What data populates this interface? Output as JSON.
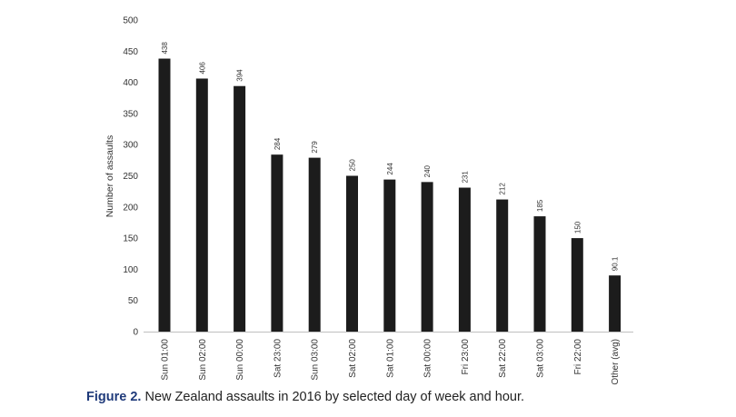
{
  "caption": {
    "figure_label": "Figure 2.",
    "text": "New Zealand assaults in 2016 by selected day of week and hour."
  },
  "colors": {
    "bar": "#1c1c1c",
    "axis": "#bfbfbf",
    "caption_label": "#1f3a7a"
  },
  "chart_data": {
    "type": "bar",
    "title": "",
    "xlabel": "",
    "ylabel": "Number of assaults",
    "ylim": [
      0,
      500
    ],
    "yticks": [
      0,
      50,
      100,
      150,
      200,
      250,
      300,
      350,
      400,
      450,
      500
    ],
    "grid": false,
    "categories": [
      "Sun 01:00",
      "Sun 02:00",
      "Sun 00:00",
      "Sat 23:00",
      "Sun 03:00",
      "Sat 02:00",
      "Sat 01:00",
      "Sat 00:00",
      "Fri 23:00",
      "Sat 22:00",
      "Sat 03:00",
      "Fri 22:00",
      "Other (avg)"
    ],
    "values": [
      438,
      406,
      394,
      284,
      279,
      250,
      244,
      240,
      231,
      212,
      185,
      150,
      90.1
    ],
    "data_labels": [
      "438",
      "406",
      "394",
      "284",
      "279",
      "250",
      "244",
      "240",
      "231",
      "212",
      "185",
      "150",
      "90.1"
    ]
  }
}
